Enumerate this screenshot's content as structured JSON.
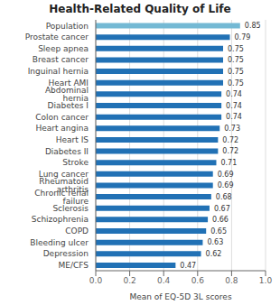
{
  "chart_data": {
    "type": "bar",
    "orientation": "horizontal",
    "title": "Health-Related Quality of Life",
    "x_label": "Mean of EQ-5D 3L scores",
    "categories": [
      "ME/CFS",
      "Depression",
      "Bleeding ulcer",
      "COPD",
      "Schizophrenia",
      "Sclerosis",
      "Chronic renal failure",
      "Rheumatoid arthritis",
      "Lung cancer",
      "Stroke",
      "Diabetes II",
      "Heart IS",
      "Heart angina",
      "Colon cancer",
      "Diabetes I",
      "Abdominal hernia",
      "Heart AMI",
      "Inguinal hernia",
      "Breast cancer",
      "Sleep apnea",
      "Prostate cancer",
      "Population"
    ],
    "values": [
      0.47,
      0.62,
      0.63,
      0.65,
      0.66,
      0.67,
      0.68,
      0.69,
      0.69,
      0.71,
      0.72,
      0.72,
      0.73,
      0.74,
      0.74,
      0.74,
      0.75,
      0.75,
      0.75,
      0.75,
      0.79,
      0.85
    ],
    "colors": [
      "#2171b5",
      "#2171b5",
      "#2171b5",
      "#2171b5",
      "#2171b5",
      "#2171b5",
      "#2171b5",
      "#2171b5",
      "#2171b5",
      "#2171b5",
      "#2171b5",
      "#2171b5",
      "#2171b5",
      "#2171b5",
      "#2171b5",
      "#2171b5",
      "#2171b5",
      "#2171b5",
      "#2171b5",
      "#2171b5",
      "#2171b5",
      "#74b9d4"
    ],
    "xlim": [
      0.0,
      1.0
    ],
    "xticks": [
      {
        "value": 0,
        "label": "0.0"
      },
      0.2,
      0.4,
      0.6,
      0.8,
      {
        "value": 1,
        "label": "1.0"
      }
    ],
    "grid": true,
    "data_labels": true
  }
}
